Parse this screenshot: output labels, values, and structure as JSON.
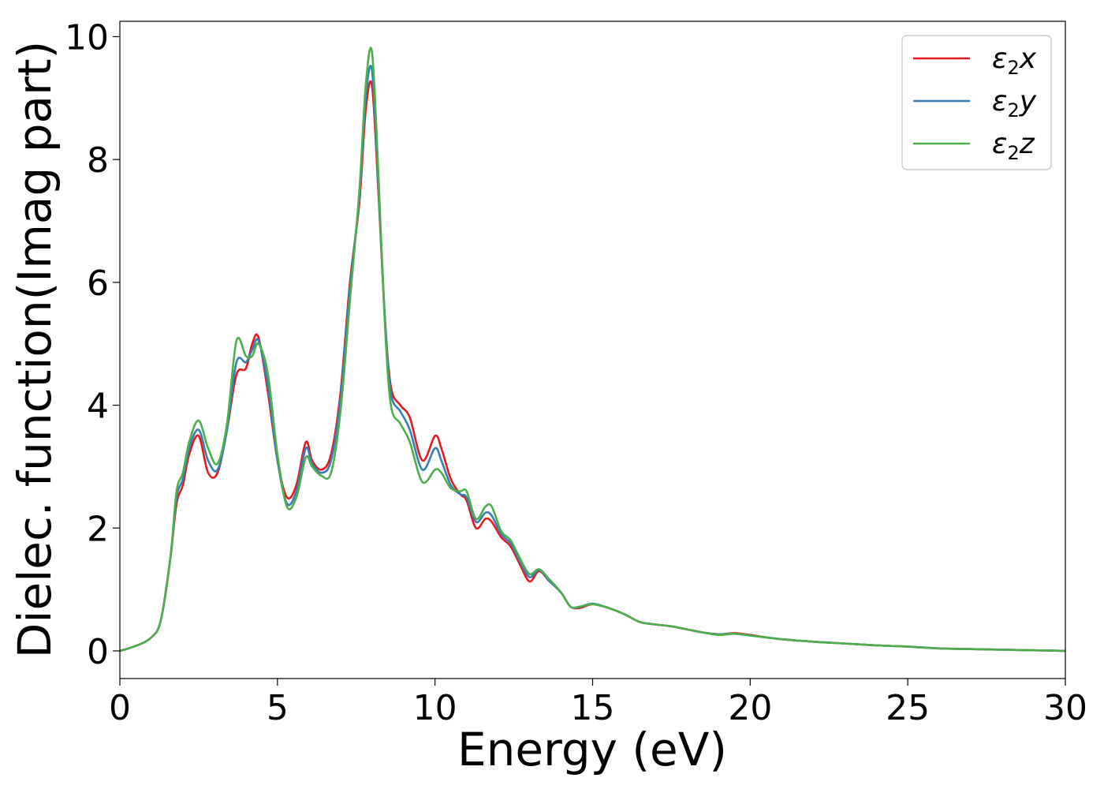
{
  "chart_data": {
    "type": "line",
    "xlabel": "Energy (eV)",
    "ylabel": "Dielec. function(Imag part)",
    "xlim": [
      0,
      30
    ],
    "ylim": [
      -0.45,
      10.25
    ],
    "xticks": [
      0,
      5,
      10,
      15,
      20,
      25,
      30
    ],
    "yticks": [
      0,
      2,
      4,
      6,
      8,
      10
    ],
    "grid": false,
    "legend_position": "top-right",
    "series": [
      {
        "name": "ε2x",
        "legend": {
          "main": "ε",
          "sub": "2",
          "tail": "x"
        },
        "color": "#e41a1c",
        "x": [
          0,
          0.5,
          1.0,
          1.3,
          1.6,
          1.8,
          2.0,
          2.2,
          2.5,
          2.8,
          3.1,
          3.4,
          3.7,
          4.0,
          4.2,
          4.4,
          4.7,
          5.0,
          5.3,
          5.6,
          5.9,
          6.1,
          6.4,
          6.7,
          7.0,
          7.3,
          7.6,
          7.8,
          8.0,
          8.2,
          8.4,
          8.6,
          8.9,
          9.2,
          9.6,
          10.0,
          10.2,
          10.5,
          10.8,
          11.0,
          11.3,
          11.6,
          11.8,
          12.1,
          12.4,
          12.7,
          13.0,
          13.3,
          13.6,
          14.0,
          14.3,
          14.6,
          15.0,
          15.5,
          16.0,
          16.5,
          17.0,
          17.5,
          18.0,
          18.5,
          19.0,
          19.5,
          20.0,
          20.5,
          21.0,
          22.0,
          23.0,
          24.0,
          25.0,
          26.0,
          27.0,
          28.0,
          29.0,
          30.0
        ],
        "values": [
          0,
          0.08,
          0.22,
          0.5,
          1.5,
          2.4,
          2.7,
          3.2,
          3.5,
          2.9,
          2.9,
          3.6,
          4.5,
          4.6,
          5.0,
          5.1,
          4.2,
          3.1,
          2.5,
          2.7,
          3.4,
          3.1,
          2.95,
          3.2,
          4.2,
          6.0,
          7.3,
          8.8,
          9.2,
          7.5,
          5.5,
          4.3,
          4.0,
          3.8,
          3.1,
          3.5,
          3.3,
          2.8,
          2.55,
          2.45,
          2.0,
          2.15,
          2.1,
          1.85,
          1.7,
          1.4,
          1.13,
          1.3,
          1.15,
          0.95,
          0.72,
          0.7,
          0.76,
          0.7,
          0.6,
          0.47,
          0.43,
          0.4,
          0.35,
          0.3,
          0.27,
          0.29,
          0.26,
          0.22,
          0.19,
          0.15,
          0.12,
          0.09,
          0.07,
          0.04,
          0.03,
          0.02,
          0.01,
          0.0
        ]
      },
      {
        "name": "ε2y",
        "legend": {
          "main": "ε",
          "sub": "2",
          "tail": "y"
        },
        "color": "#377eb8",
        "x": [
          0,
          0.5,
          1.0,
          1.3,
          1.6,
          1.8,
          2.0,
          2.2,
          2.5,
          2.8,
          3.1,
          3.4,
          3.7,
          4.0,
          4.2,
          4.4,
          4.7,
          5.0,
          5.3,
          5.6,
          5.9,
          6.1,
          6.4,
          6.7,
          7.0,
          7.3,
          7.6,
          7.8,
          8.0,
          8.2,
          8.4,
          8.6,
          8.9,
          9.2,
          9.6,
          10.0,
          10.2,
          10.5,
          10.8,
          11.0,
          11.3,
          11.6,
          11.8,
          12.1,
          12.4,
          12.7,
          13.0,
          13.3,
          13.6,
          14.0,
          14.3,
          14.6,
          15.0,
          15.5,
          16.0,
          16.5,
          17.0,
          17.5,
          18.0,
          18.5,
          19.0,
          19.5,
          20.0,
          20.5,
          21.0,
          22.0,
          23.0,
          24.0,
          25.0,
          26.0,
          27.0,
          28.0,
          29.0,
          30.0
        ],
        "values": [
          0,
          0.08,
          0.22,
          0.5,
          1.5,
          2.5,
          2.8,
          3.3,
          3.6,
          3.1,
          2.95,
          3.6,
          4.7,
          4.7,
          4.9,
          5.05,
          4.3,
          3.1,
          2.4,
          2.6,
          3.3,
          3.05,
          2.9,
          3.1,
          4.1,
          5.9,
          7.4,
          9.0,
          9.45,
          7.6,
          5.5,
          4.2,
          3.9,
          3.6,
          2.95,
          3.3,
          3.1,
          2.7,
          2.55,
          2.5,
          2.1,
          2.25,
          2.2,
          1.9,
          1.75,
          1.45,
          1.2,
          1.32,
          1.15,
          0.95,
          0.72,
          0.72,
          0.77,
          0.7,
          0.6,
          0.47,
          0.43,
          0.4,
          0.35,
          0.3,
          0.27,
          0.28,
          0.25,
          0.22,
          0.19,
          0.15,
          0.12,
          0.09,
          0.07,
          0.04,
          0.03,
          0.02,
          0.01,
          0.0
        ]
      },
      {
        "name": "ε2z",
        "legend": {
          "main": "ε",
          "sub": "2",
          "tail": "z"
        },
        "color": "#4daf4a",
        "x": [
          0,
          0.5,
          1.0,
          1.3,
          1.6,
          1.8,
          2.0,
          2.2,
          2.5,
          2.8,
          3.1,
          3.4,
          3.7,
          4.0,
          4.2,
          4.4,
          4.7,
          5.0,
          5.3,
          5.6,
          5.9,
          6.1,
          6.4,
          6.7,
          7.0,
          7.3,
          7.6,
          7.8,
          8.0,
          8.2,
          8.4,
          8.6,
          8.9,
          9.2,
          9.6,
          10.0,
          10.2,
          10.5,
          10.8,
          11.0,
          11.3,
          11.6,
          11.8,
          12.1,
          12.4,
          12.7,
          13.0,
          13.3,
          13.6,
          14.0,
          14.3,
          14.6,
          15.0,
          15.5,
          16.0,
          16.5,
          17.0,
          17.5,
          18.0,
          18.5,
          19.0,
          19.5,
          20.0,
          20.5,
          21.0,
          22.0,
          23.0,
          24.0,
          25.0,
          26.0,
          27.0,
          28.0,
          29.0,
          30.0
        ],
        "values": [
          0,
          0.08,
          0.22,
          0.5,
          1.5,
          2.6,
          2.9,
          3.4,
          3.75,
          3.3,
          3.05,
          3.7,
          5.05,
          4.8,
          4.8,
          5.0,
          4.5,
          3.2,
          2.35,
          2.5,
          3.15,
          3.0,
          2.85,
          2.9,
          3.9,
          5.7,
          7.5,
          9.2,
          9.75,
          7.8,
          5.4,
          4.0,
          3.7,
          3.4,
          2.75,
          2.95,
          2.9,
          2.65,
          2.6,
          2.6,
          2.15,
          2.35,
          2.35,
          1.95,
          1.8,
          1.5,
          1.25,
          1.33,
          1.18,
          0.95,
          0.72,
          0.72,
          0.76,
          0.7,
          0.6,
          0.47,
          0.43,
          0.4,
          0.35,
          0.3,
          0.26,
          0.28,
          0.25,
          0.22,
          0.19,
          0.15,
          0.12,
          0.09,
          0.07,
          0.04,
          0.03,
          0.02,
          0.01,
          0.0
        ]
      }
    ]
  }
}
